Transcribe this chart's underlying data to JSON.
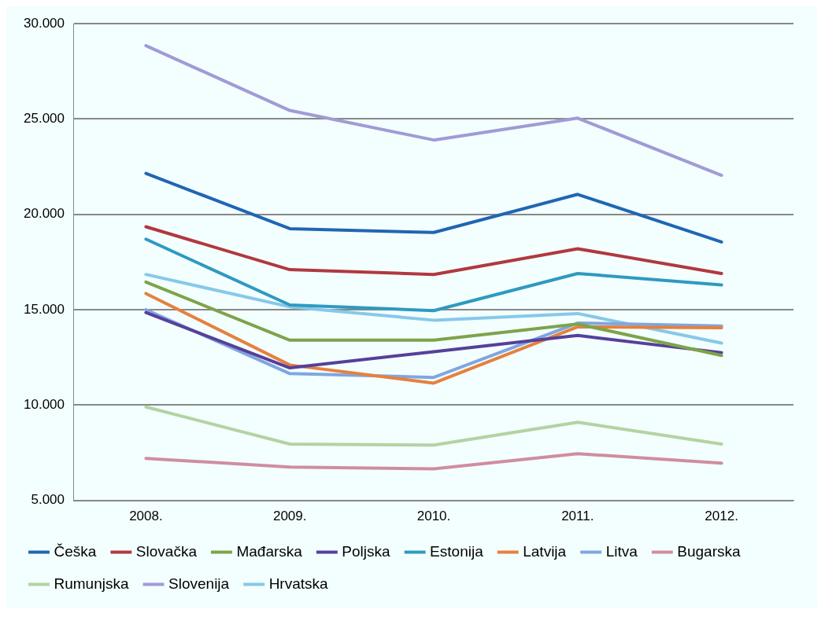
{
  "chart_data": {
    "type": "line",
    "categories": [
      "2008.",
      "2009.",
      "2010.",
      "2011.",
      "2012."
    ],
    "series": [
      {
        "name": "Češka",
        "color": "#1f66b3",
        "values": [
          22150,
          19250,
          19050,
          21050,
          18550
        ]
      },
      {
        "name": "Slovačka",
        "color": "#b0393f",
        "values": [
          19350,
          17100,
          16850,
          18200,
          16900
        ]
      },
      {
        "name": "Mađarska",
        "color": "#7ea34a",
        "values": [
          16450,
          13400,
          13400,
          14250,
          12600
        ]
      },
      {
        "name": "Poljska",
        "color": "#56409a",
        "values": [
          14850,
          11950,
          12800,
          13650,
          12750
        ]
      },
      {
        "name": "Estonija",
        "color": "#2e9ac0",
        "values": [
          18700,
          15250,
          14950,
          16900,
          16300
        ]
      },
      {
        "name": "Latvija",
        "color": "#e5813e",
        "values": [
          15850,
          12100,
          11150,
          14100,
          14050
        ]
      },
      {
        "name": "Litva",
        "color": "#7fa6e0",
        "values": [
          15000,
          11650,
          11450,
          14300,
          14150
        ]
      },
      {
        "name": "Bugarska",
        "color": "#d08da0",
        "values": [
          7200,
          6750,
          6650,
          7450,
          6950
        ]
      },
      {
        "name": "Rumunjska",
        "color": "#b3d3a1",
        "values": [
          9900,
          7950,
          7900,
          9100,
          7950
        ]
      },
      {
        "name": "Slovenija",
        "color": "#a09bd6",
        "values": [
          28850,
          25450,
          23900,
          25050,
          22050
        ]
      },
      {
        "name": "Hrvatska",
        "color": "#87c8ea",
        "values": [
          16850,
          15150,
          14450,
          14800,
          13250
        ]
      }
    ],
    "ylim": [
      5000,
      30000
    ],
    "yticks": [
      {
        "value": 5000,
        "label": "5.000"
      },
      {
        "value": 10000,
        "label": "10.000"
      },
      {
        "value": 15000,
        "label": "15.000"
      },
      {
        "value": 20000,
        "label": "20.000"
      },
      {
        "value": 25000,
        "label": "25.000"
      },
      {
        "value": 30000,
        "label": "30.000"
      }
    ],
    "grid": "y",
    "legend": "bottom",
    "marker": "none",
    "line_style": "solid"
  }
}
